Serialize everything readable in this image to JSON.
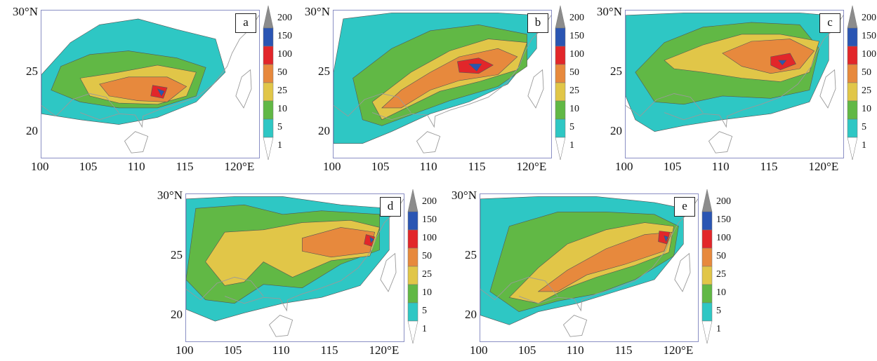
{
  "colorbar": {
    "labels": [
      "200",
      "150",
      "100",
      "50",
      "25",
      "10",
      "5",
      "1"
    ],
    "colors": [
      "#8c8c8c",
      "#2a55b3",
      "#e2262a",
      "#e7893d",
      "#e1c648",
      "#61b845",
      "#2ec7c4",
      "#ffffff"
    ]
  },
  "lat_ticks": [
    "30°N",
    "25",
    "20"
  ],
  "lon_ticks": [
    "100",
    "105",
    "110",
    "115",
    "120°E"
  ],
  "panels": [
    {
      "letter": "a"
    },
    {
      "letter": "b"
    },
    {
      "letter": "c"
    },
    {
      "letter": "d"
    },
    {
      "letter": "e"
    }
  ]
}
